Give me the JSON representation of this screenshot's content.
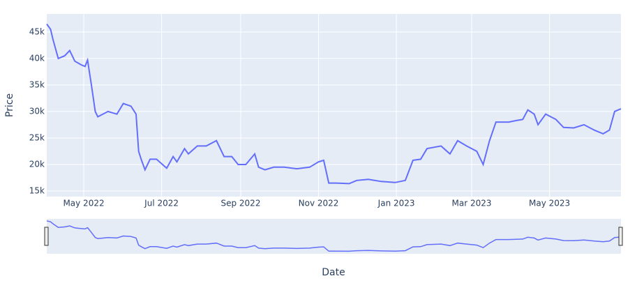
{
  "chart_data": {
    "type": "line",
    "xlabel": "Date",
    "ylabel": "Price",
    "x": [
      "2022-04-02",
      "2022-04-05",
      "2022-04-07",
      "2022-04-11",
      "2022-04-16",
      "2022-04-20",
      "2022-04-24",
      "2022-04-29",
      "2022-05-02",
      "2022-05-04",
      "2022-05-07",
      "2022-05-10",
      "2022-05-12",
      "2022-05-20",
      "2022-05-27",
      "2022-06-01",
      "2022-06-07",
      "2022-06-11",
      "2022-06-13",
      "2022-06-15",
      "2022-06-18",
      "2022-06-22",
      "2022-06-27",
      "2022-07-05",
      "2022-07-10",
      "2022-07-13",
      "2022-07-19",
      "2022-07-22",
      "2022-07-29",
      "2022-08-05",
      "2022-08-13",
      "2022-08-19",
      "2022-08-25",
      "2022-08-30",
      "2022-09-05",
      "2022-09-12",
      "2022-09-15",
      "2022-09-20",
      "2022-09-27",
      "2022-10-05",
      "2022-10-15",
      "2022-10-25",
      "2022-11-01",
      "2022-11-05",
      "2022-11-09",
      "2022-11-15",
      "2022-11-25",
      "2022-12-01",
      "2022-12-10",
      "2022-12-20",
      "2022-12-31",
      "2023-01-08",
      "2023-01-14",
      "2023-01-20",
      "2023-01-25",
      "2023-02-05",
      "2023-02-12",
      "2023-02-18",
      "2023-02-25",
      "2023-03-05",
      "2023-03-10",
      "2023-03-15",
      "2023-03-20",
      "2023-03-30",
      "2023-04-05",
      "2023-04-10",
      "2023-04-14",
      "2023-04-19",
      "2023-04-22",
      "2023-04-28",
      "2023-05-06",
      "2023-05-12",
      "2023-05-20",
      "2023-05-28",
      "2023-06-05",
      "2023-06-12",
      "2023-06-17",
      "2023-06-21",
      "2023-06-26"
    ],
    "series": [
      {
        "name": "Price",
        "color": "#636efa",
        "values": [
          46500,
          45500,
          43500,
          40000,
          40500,
          41500,
          39500,
          38800,
          38500,
          39700,
          35000,
          30000,
          29000,
          30000,
          29500,
          31500,
          31000,
          29500,
          22500,
          21000,
          19000,
          21000,
          21000,
          19300,
          21500,
          20500,
          23000,
          22000,
          23500,
          23500,
          24500,
          21500,
          21500,
          20000,
          20000,
          22000,
          19500,
          19000,
          19500,
          19500,
          19200,
          19500,
          20500,
          20800,
          16500,
          16500,
          16400,
          17000,
          17200,
          16800,
          16600,
          17000,
          20800,
          21000,
          23000,
          23500,
          22000,
          24500,
          23500,
          22500,
          20000,
          24500,
          28000,
          28000,
          28300,
          28500,
          30300,
          29500,
          27500,
          29500,
          28500,
          27000,
          26900,
          27500,
          26500,
          25800,
          26500,
          30000,
          30500
        ]
      }
    ],
    "xlim": [
      "2022-04-02",
      "2023-06-26"
    ],
    "xticks": [
      {
        "value": "2022-05-01",
        "label": "May 2022"
      },
      {
        "value": "2022-07-01",
        "label": "Jul 2022"
      },
      {
        "value": "2022-09-01",
        "label": "Sep 2022"
      },
      {
        "value": "2022-11-01",
        "label": "Nov 2022"
      },
      {
        "value": "2023-01-01",
        "label": "Jan 2023"
      },
      {
        "value": "2023-03-01",
        "label": "Mar 2023"
      },
      {
        "value": "2023-05-01",
        "label": "May 2023"
      }
    ],
    "ylim": [
      13950,
      48400
    ],
    "yticks": [
      {
        "value": 15000,
        "label": "15k"
      },
      {
        "value": 20000,
        "label": "20k"
      },
      {
        "value": 25000,
        "label": "25k"
      },
      {
        "value": 30000,
        "label": "30k"
      },
      {
        "value": 35000,
        "label": "35k"
      },
      {
        "value": 40000,
        "label": "40k"
      },
      {
        "value": 45000,
        "label": "45k"
      }
    ],
    "grid": true,
    "range_slider": true
  }
}
